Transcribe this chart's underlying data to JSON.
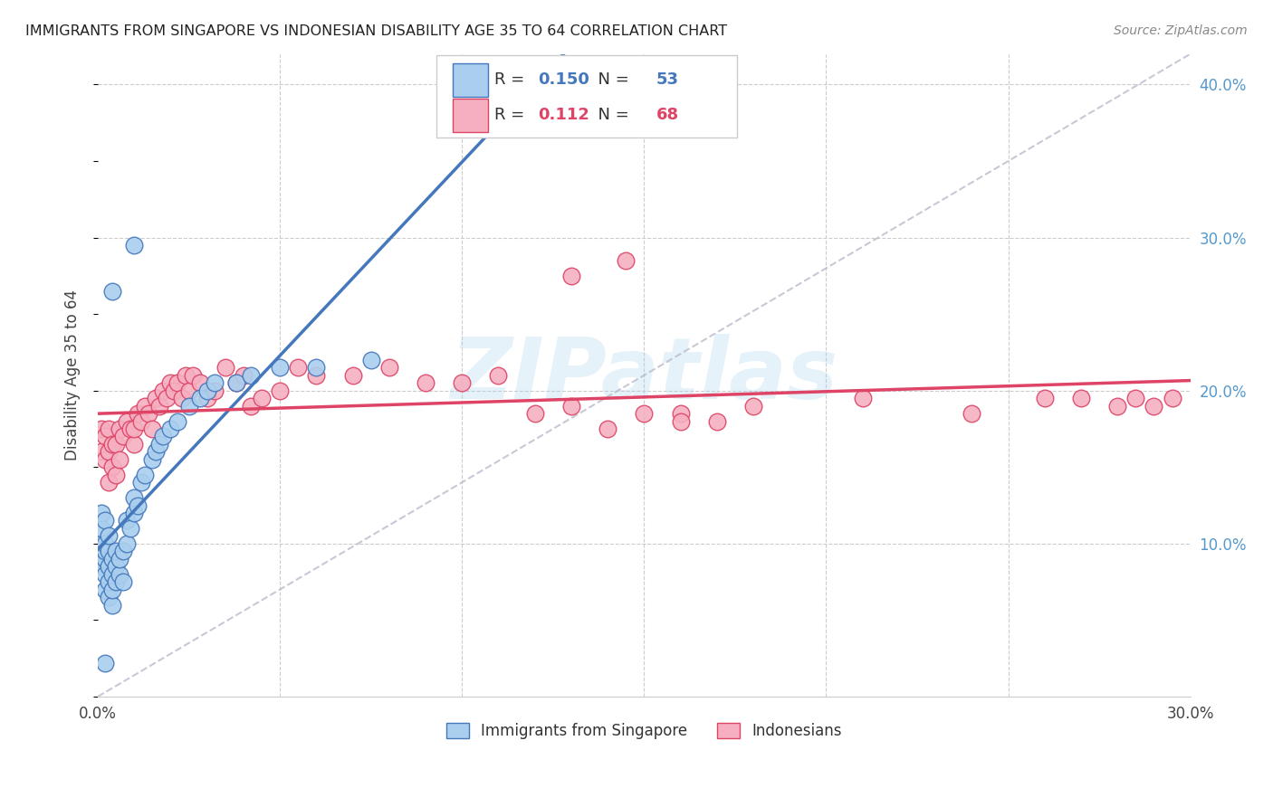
{
  "title": "IMMIGRANTS FROM SINGAPORE VS INDONESIAN DISABILITY AGE 35 TO 64 CORRELATION CHART",
  "source": "Source: ZipAtlas.com",
  "xlabel_legend1": "Immigrants from Singapore",
  "xlabel_legend2": "Indonesians",
  "ylabel": "Disability Age 35 to 64",
  "xlim": [
    0.0,
    0.3
  ],
  "ylim": [
    0.0,
    0.42
  ],
  "x_ticks": [
    0.0,
    0.05,
    0.1,
    0.15,
    0.2,
    0.25,
    0.3
  ],
  "y_ticks_right": [
    0.1,
    0.2,
    0.3,
    0.4
  ],
  "y_tick_labels_right": [
    "10.0%",
    "20.0%",
    "30.0%",
    "40.0%"
  ],
  "R_singapore": 0.15,
  "N_singapore": 53,
  "R_indonesian": 0.112,
  "N_indonesian": 68,
  "color_singapore": "#aacfee",
  "color_indonesian": "#f5afc0",
  "color_singapore_line": "#4477bb",
  "color_indonesian_line": "#dd4466",
  "color_diag_line": "#bbbbcc",
  "watermark": "ZIPatlas",
  "singapore_x": [
    0.001,
    0.001,
    0.001,
    0.001,
    0.001,
    0.002,
    0.002,
    0.002,
    0.002,
    0.002,
    0.002,
    0.003,
    0.003,
    0.003,
    0.003,
    0.003,
    0.004,
    0.004,
    0.004,
    0.004,
    0.005,
    0.005,
    0.005,
    0.006,
    0.006,
    0.007,
    0.007,
    0.008,
    0.008,
    0.009,
    0.01,
    0.01,
    0.011,
    0.012,
    0.013,
    0.015,
    0.016,
    0.017,
    0.018,
    0.02,
    0.022,
    0.025,
    0.028,
    0.03,
    0.032,
    0.038,
    0.042,
    0.05,
    0.06,
    0.075,
    0.01,
    0.004,
    0.002
  ],
  "singapore_y": [
    0.085,
    0.095,
    0.1,
    0.11,
    0.12,
    0.07,
    0.08,
    0.09,
    0.095,
    0.1,
    0.115,
    0.065,
    0.075,
    0.085,
    0.095,
    0.105,
    0.06,
    0.07,
    0.08,
    0.09,
    0.075,
    0.085,
    0.095,
    0.08,
    0.09,
    0.075,
    0.095,
    0.1,
    0.115,
    0.11,
    0.12,
    0.13,
    0.125,
    0.14,
    0.145,
    0.155,
    0.16,
    0.165,
    0.17,
    0.175,
    0.18,
    0.19,
    0.195,
    0.2,
    0.205,
    0.205,
    0.21,
    0.215,
    0.215,
    0.22,
    0.295,
    0.265,
    0.022
  ],
  "indonesian_x": [
    0.001,
    0.001,
    0.002,
    0.002,
    0.003,
    0.003,
    0.003,
    0.004,
    0.004,
    0.005,
    0.005,
    0.006,
    0.006,
    0.007,
    0.008,
    0.009,
    0.01,
    0.01,
    0.011,
    0.012,
    0.013,
    0.014,
    0.015,
    0.016,
    0.017,
    0.018,
    0.019,
    0.02,
    0.021,
    0.022,
    0.023,
    0.024,
    0.025,
    0.026,
    0.028,
    0.03,
    0.032,
    0.035,
    0.038,
    0.04,
    0.042,
    0.045,
    0.05,
    0.055,
    0.06,
    0.07,
    0.08,
    0.09,
    0.1,
    0.11,
    0.12,
    0.13,
    0.14,
    0.15,
    0.16,
    0.17,
    0.18,
    0.21,
    0.24,
    0.26,
    0.27,
    0.28,
    0.285,
    0.29,
    0.295,
    0.13,
    0.145,
    0.16
  ],
  "indonesian_y": [
    0.16,
    0.175,
    0.155,
    0.17,
    0.14,
    0.16,
    0.175,
    0.15,
    0.165,
    0.145,
    0.165,
    0.155,
    0.175,
    0.17,
    0.18,
    0.175,
    0.165,
    0.175,
    0.185,
    0.18,
    0.19,
    0.185,
    0.175,
    0.195,
    0.19,
    0.2,
    0.195,
    0.205,
    0.2,
    0.205,
    0.195,
    0.21,
    0.2,
    0.21,
    0.205,
    0.195,
    0.2,
    0.215,
    0.205,
    0.21,
    0.19,
    0.195,
    0.2,
    0.215,
    0.21,
    0.21,
    0.215,
    0.205,
    0.205,
    0.21,
    0.185,
    0.19,
    0.175,
    0.185,
    0.185,
    0.18,
    0.19,
    0.195,
    0.185,
    0.195,
    0.195,
    0.19,
    0.195,
    0.19,
    0.195,
    0.275,
    0.285,
    0.18
  ]
}
